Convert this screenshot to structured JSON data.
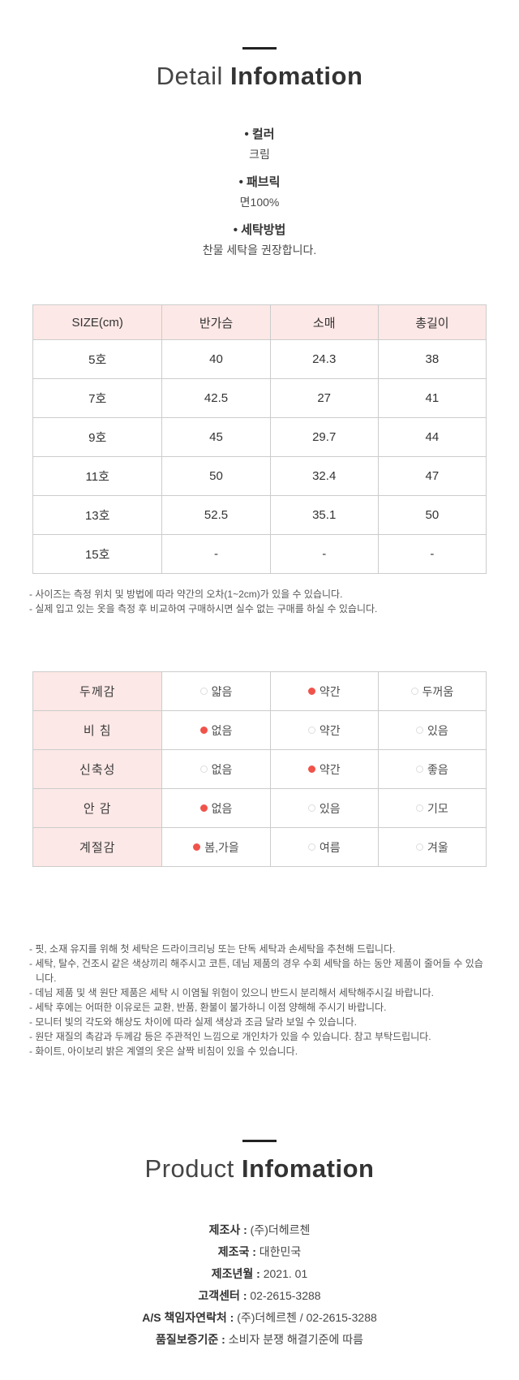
{
  "colors": {
    "accent_pink": "#fce8e6",
    "selected_dot_red": "#f0534a",
    "table_border": "#cccccc"
  },
  "detail_section": {
    "title_light": "Detail",
    "title_bold": "Infomation",
    "specs": [
      {
        "label": "• 컬러",
        "value": "크림"
      },
      {
        "label": "• 패브릭",
        "value": "면100%"
      },
      {
        "label": "• 세탁방법",
        "value": "찬물 세탁을 권장합니다."
      }
    ],
    "size_table": {
      "headers": [
        "SIZE(cm)",
        "반가슴",
        "소매",
        "총길이"
      ],
      "rows": [
        {
          "size": "5호",
          "values": [
            "40",
            "24.3",
            "38"
          ]
        },
        {
          "size": "7호",
          "values": [
            "42.5",
            "27",
            "41"
          ]
        },
        {
          "size": "9호",
          "values": [
            "45",
            "29.7",
            "44"
          ]
        },
        {
          "size": "11호",
          "values": [
            "50",
            "32.4",
            "47"
          ]
        },
        {
          "size": "13호",
          "values": [
            "52.5",
            "35.1",
            "50"
          ]
        },
        {
          "size": "15호",
          "values": [
            "-",
            "-",
            "-"
          ]
        }
      ]
    },
    "size_notes": [
      "- 사이즈는 측정 위치 및 방법에 따라 약간의 오차(1~2cm)가 있을 수 있습니다.",
      "- 실제 입고 있는 옷을 측정 후 비교하여 구매하시면 실수 없는 구매를 하실 수 있습니다."
    ],
    "properties_table": {
      "rows": [
        {
          "label": "두께감",
          "options": [
            {
              "label": "얇음",
              "state": "off"
            },
            {
              "label": "약간",
              "state": "on"
            },
            {
              "label": "두꺼움",
              "state": "off"
            }
          ]
        },
        {
          "label": "비 침",
          "options": [
            {
              "label": "없음",
              "state": "on"
            },
            {
              "label": "약간",
              "state": "off"
            },
            {
              "label": "있음",
              "state": "off"
            }
          ]
        },
        {
          "label": "신축성",
          "options": [
            {
              "label": "없음",
              "state": "off"
            },
            {
              "label": "약간",
              "state": "on"
            },
            {
              "label": "좋음",
              "state": "off"
            }
          ]
        },
        {
          "label": "안 감",
          "options": [
            {
              "label": "없음",
              "state": "on"
            },
            {
              "label": "있음",
              "state": "off"
            },
            {
              "label": "기모",
              "state": "off"
            }
          ]
        },
        {
          "label": "계절감",
          "options": [
            {
              "label": "봄,가을",
              "state": "on"
            },
            {
              "label": "여름",
              "state": "off"
            },
            {
              "label": "겨울",
              "state": "off"
            }
          ]
        }
      ]
    },
    "care_notes": [
      "- 핏, 소재 유지를 위해 첫 세탁은 드라이크리닝 또는 단독 세탁과 손세탁을 추천해 드립니다.",
      "- 세탁, 탈수, 건조시 같은 색상끼리 해주시고 코튼, 데님 제품의 경우 수회 세탁을 하는 동안 제품이 줄어들 수 있습니다.",
      "- 데님 제품 및 색 원단 제품은 세탁 시 이염될 위험이 있으니 반드시 분리해서 세탁해주시길 바랍니다.",
      "- 세탁 후에는 어떠한 이유로든 교환, 반품, 환불이 불가하니 이점 양해해 주시기 바랍니다.",
      "- 모니터 빛의 각도와 해상도 차이에 따라 실제 색상과 조금 달라 보일 수 있습니다.",
      "- 원단 재질의 촉감과 두께감 등은 주관적인 느낌으로 개인차가 있을 수 있습니다. 참고 부탁드립니다.",
      "- 화이트, 아이보리 밝은 계열의 옷은 살짝 비침이 있을 수 있습니다."
    ]
  },
  "product_section": {
    "title_light": "Product",
    "title_bold": "Infomation",
    "separator": " : ",
    "items": [
      {
        "label": "제조사",
        "value": "(주)더헤르첸"
      },
      {
        "label": "제조국",
        "value": "대한민국"
      },
      {
        "label": "제조년월",
        "value": "2021. 01"
      },
      {
        "label": "고객센터",
        "value": "02-2615-3288"
      },
      {
        "label": "A/S 책임자연락처",
        "value": "(주)더헤르첸 / 02-2615-3288"
      },
      {
        "label": "품질보증기준",
        "value": "소비자 분쟁 해결기준에 따름"
      }
    ]
  }
}
